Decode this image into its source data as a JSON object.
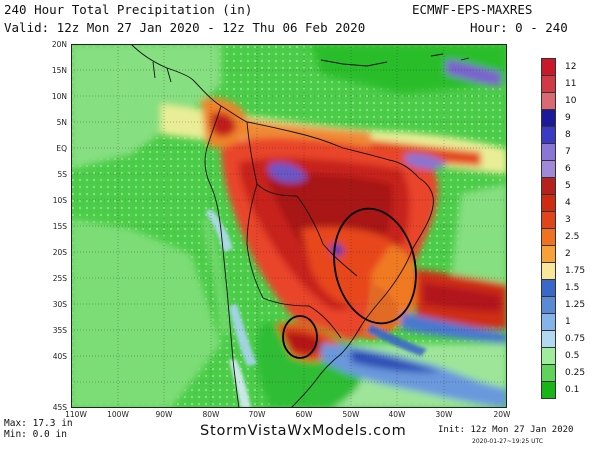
{
  "header": {
    "title": "240 Hour Total Precipitation (in)",
    "valid": "Valid: 12z Mon 27 Jan 2020 - 12z Thu 06 Feb 2020",
    "model": "ECMWF-EPS-MAXRES",
    "hours": "Hour: 0 - 240"
  },
  "map": {
    "lat_labels": [
      "20N",
      "15N",
      "10N",
      "5N",
      "EQ",
      "5S",
      "10S",
      "15S",
      "20S",
      "25S",
      "30S",
      "35S",
      "40S",
      "45S"
    ],
    "lon_labels": [
      "110W",
      "100W",
      "90W",
      "80W",
      "70W",
      "60W",
      "50W",
      "40W",
      "30W",
      "20W"
    ]
  },
  "colorbar": {
    "labels": [
      "12",
      "11",
      "10",
      "9",
      "8",
      "7",
      "6",
      "5",
      "4",
      "3",
      "2.5",
      "2",
      "1.75",
      "1.5",
      "1.25",
      "1",
      "0.75",
      "0.5",
      "0.25",
      "0.1"
    ],
    "colors": [
      "#c8182a",
      "#cf3a45",
      "#d96a73",
      "#1d1a9a",
      "#3a3ac4",
      "#8a76d6",
      "#a08ad8",
      "#b5211c",
      "#cf2a12",
      "#e0441a",
      "#ef7220",
      "#f7a13a",
      "#f8e79a",
      "#3a68c8",
      "#5a8ad6",
      "#84b4e8",
      "#b2d8f2",
      "#9fec9c",
      "#5fd35b",
      "#18b418"
    ]
  },
  "footer": {
    "max": "Max: 17.3 in",
    "min": "Min: 0.0 in",
    "brand": "StormVistaWxModels.com",
    "init": "Init: 12z Mon 27 Jan 2020",
    "stamp": "2020-01-27~19:25 UTC"
  }
}
